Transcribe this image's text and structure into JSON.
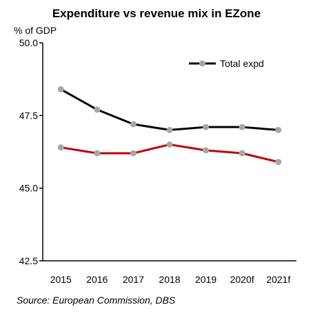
{
  "chart_data": {
    "type": "line",
    "title": "Expenditure vs revenue mix in EZone",
    "ylabel": "% of GDP",
    "xlabel": "",
    "categories": [
      "2015",
      "2016",
      "2017",
      "2018",
      "2019",
      "2020f",
      "2021f"
    ],
    "y_ticks": [
      "50.0",
      "47.5",
      "45.0",
      "42.5"
    ],
    "ylim": [
      42.5,
      50.0
    ],
    "grid": false,
    "legend_position": "top-right",
    "series": [
      {
        "name": "Total expd",
        "color": "#000000",
        "marker_color": "#a6a6a6",
        "values": [
          48.4,
          47.7,
          47.2,
          47.0,
          47.1,
          47.1,
          47.0
        ]
      },
      {
        "name": "",
        "color": "#c00000",
        "marker_color": "#a6a6a6",
        "values": [
          46.4,
          46.2,
          46.2,
          46.5,
          46.3,
          46.2,
          45.9
        ]
      }
    ],
    "source": "Source: European Commission, DBS"
  }
}
